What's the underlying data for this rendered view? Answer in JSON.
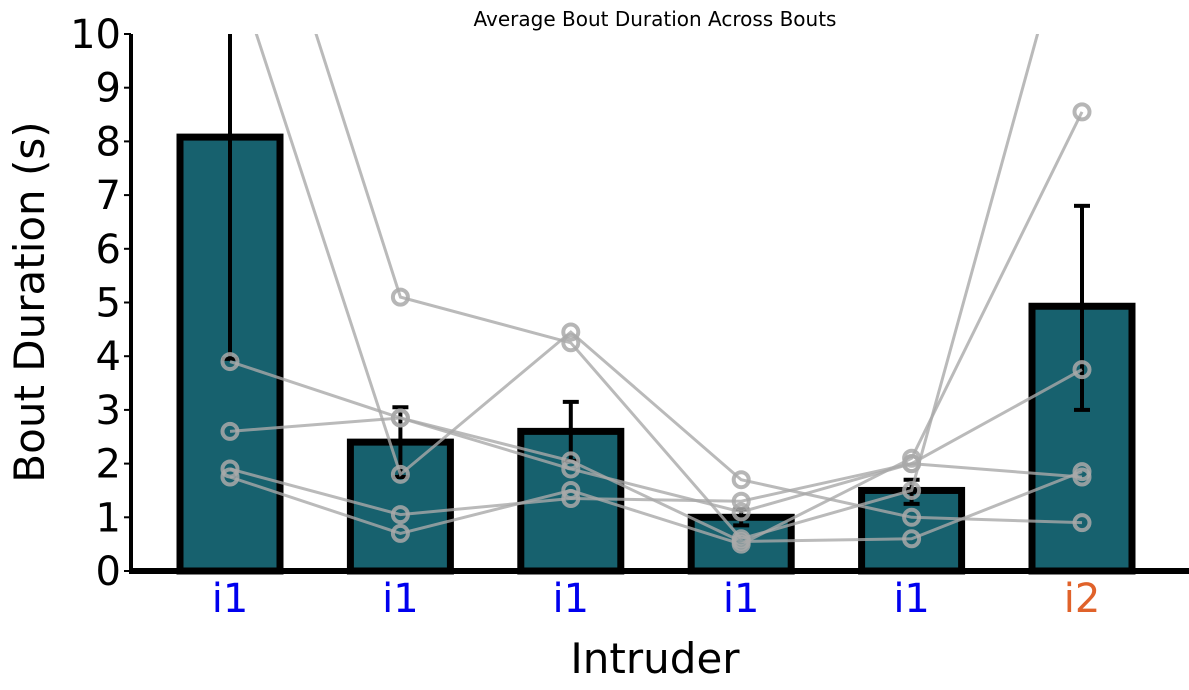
{
  "chart_data": {
    "type": "bar",
    "title": "Average Bout Duration Across Bouts",
    "xlabel": "Intruder",
    "ylabel": "Bout Duration (s)",
    "ylim": [
      0,
      10
    ],
    "yticks": [
      0,
      1,
      2,
      3,
      4,
      5,
      6,
      7,
      8,
      9,
      10
    ],
    "grid": false,
    "legend": "none",
    "categories": [
      "i1",
      "i1",
      "i1",
      "i1",
      "i1",
      "i2"
    ],
    "category_colors": [
      "#0000ee",
      "#0000ee",
      "#0000ee",
      "#0000ee",
      "#0000ee",
      "#e0622a"
    ],
    "bar_color": "#17616e",
    "bar_edge_color": "#000000",
    "values": [
      8.08,
      2.4,
      2.6,
      1.0,
      1.5,
      4.93
    ],
    "error": [
      {
        "low": 3.95,
        "high": 10.0
      },
      {
        "low": 1.75,
        "high": 3.05
      },
      {
        "low": 2.05,
        "high": 3.15
      },
      {
        "low": 0.85,
        "high": 1.15
      },
      {
        "low": 1.25,
        "high": 1.7
      },
      {
        "low": 3.0,
        "high": 6.8
      }
    ],
    "individual_lines": [
      {
        "values": [
          1.75,
          0.7,
          1.5,
          0.5,
          2.1,
          8.55
        ]
      },
      {
        "values": [
          2.6,
          2.85,
          1.9,
          1.1,
          2.0,
          3.75
        ]
      },
      {
        "values": [
          1.9,
          1.05,
          1.35,
          1.3,
          2.0,
          1.75
        ]
      },
      {
        "values": [
          3.9,
          2.85,
          2.05,
          0.55,
          0.6,
          1.85
        ]
      },
      {
        "values": [
          11.5,
          1.8,
          4.45,
          1.7,
          1.0,
          0.9
        ]
      },
      {
        "values": [
          15.0,
          5.1,
          4.25,
          0.6,
          1.5,
          13.0
        ]
      }
    ],
    "individual_color": "#a9a9a9"
  }
}
